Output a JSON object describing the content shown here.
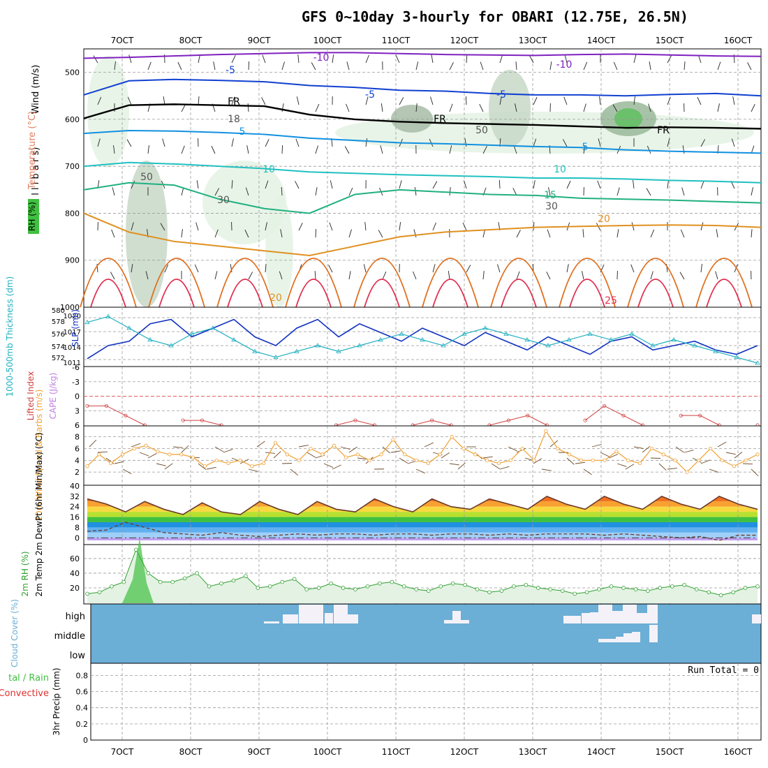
{
  "title": "GFS 0~10day 3-hourly for OBARI (12.75E, 26.5N)",
  "colors": {
    "wind": "#000000",
    "temp_label": "#e05050",
    "rh_label": "#40b040",
    "slp": "#1030c0",
    "thickness": "#20b0c0",
    "lifted_index": "#d04040",
    "cape_label": "#c080e0",
    "wind10_speed": "#f0a030",
    "wind10_label": "#f0a030",
    "rh2m": "#30a030",
    "cloud": "#6baed6",
    "precip_total": "#40c040",
    "precip_conv": "#e03030"
  },
  "chart_data": [
    {
      "type": "line",
      "panel": "upper-air",
      "x_tick_labels": [
        "7OCT",
        "8OCT",
        "9OCT",
        "10OCT",
        "11OCT",
        "12OCT",
        "13OCT",
        "14OCT",
        "15OCT",
        "16OCT"
      ],
      "y_tick_labels": [
        "500",
        "600",
        "700",
        "800",
        "900",
        "1000"
      ],
      "ylim": [
        1000,
        450
      ],
      "ylabel_parts": [
        "Wind (m/s)",
        "Temperature (°C)",
        "RH (%)"
      ],
      "ylabel_units": "(m i l l i b a r s)",
      "contour_labels": [
        "-10",
        "-10",
        "-5",
        "-5",
        "FR",
        "FR",
        "FR",
        "-5",
        "5",
        "5",
        "10",
        "10",
        "15",
        "20",
        "20",
        "25",
        "30",
        "30",
        "50",
        "50",
        "18"
      ],
      "series": [
        {
          "name": "-10",
          "y": [
            470,
            468,
            465,
            462,
            460,
            458,
            458,
            460,
            462,
            463,
            464,
            462,
            461,
            463,
            465,
            466
          ]
        },
        {
          "name": "-5",
          "y": [
            548,
            518,
            515,
            517,
            520,
            528,
            532,
            538,
            540,
            545,
            548,
            548,
            550,
            547,
            545,
            550
          ]
        },
        {
          "name": "FR",
          "y": [
            598,
            570,
            568,
            570,
            572,
            590,
            600,
            605,
            608,
            610,
            612,
            615,
            618,
            617,
            618,
            620
          ]
        },
        {
          "name": "5",
          "y": [
            630,
            624,
            625,
            628,
            632,
            640,
            645,
            650,
            652,
            655,
            658,
            660,
            665,
            668,
            670,
            672
          ]
        },
        {
          "name": "10",
          "y": [
            700,
            692,
            695,
            700,
            705,
            712,
            715,
            718,
            720,
            722,
            725,
            725,
            727,
            730,
            732,
            735
          ]
        },
        {
          "name": "15",
          "y": [
            750,
            735,
            740,
            770,
            790,
            800,
            760,
            750,
            755,
            760,
            762,
            768,
            770,
            772,
            775,
            778
          ]
        },
        {
          "name": "20",
          "y": [
            800,
            840,
            860,
            870,
            880,
            890,
            870,
            850,
            840,
            835,
            830,
            828,
            826,
            825,
            826,
            830
          ]
        }
      ]
    },
    {
      "type": "line",
      "panel": "slp-thickness",
      "ylabel_left": "1000-500mb Thickness (dm)",
      "ylabel_right": "SLP (mb)",
      "left_ticks": [
        "580",
        "578",
        "576",
        "574",
        "572"
      ],
      "right_ticks": [
        "1020",
        "1017",
        "1014",
        "1011"
      ],
      "series": [
        {
          "name": "SLP",
          "values": [
            1011,
            1014,
            1015,
            1019,
            1020,
            1016,
            1018,
            1020,
            1016,
            1014,
            1018,
            1020,
            1016,
            1019,
            1017,
            1015,
            1018,
            1016,
            1014,
            1017,
            1015,
            1013,
            1016,
            1014,
            1012,
            1015,
            1016,
            1013,
            1014,
            1015,
            1013,
            1012,
            1014
          ]
        },
        {
          "name": "Thickness",
          "values": [
            578,
            579,
            577,
            575,
            574,
            576,
            577,
            575,
            573,
            572,
            573,
            574,
            573,
            574,
            575,
            576,
            575,
            574,
            576,
            577,
            576,
            575,
            574,
            575,
            576,
            575,
            576,
            574,
            575,
            574,
            573,
            572,
            571
          ]
        }
      ]
    },
    {
      "type": "line",
      "panel": "lifted-index-cape",
      "ylabel_left": "Lifted Index",
      "ylabel_right": "CAPE (J/kg)",
      "ticks": [
        "-6",
        "-3",
        "0",
        "3",
        "6"
      ],
      "series": [
        {
          "name": "Lifted Index",
          "values": [
            2,
            2,
            4,
            6,
            null,
            5,
            5,
            6,
            null,
            null,
            null,
            null,
            null,
            6,
            5,
            6,
            null,
            6,
            5,
            6,
            null,
            6,
            5,
            4,
            6,
            null,
            5,
            2,
            4,
            6,
            null,
            4,
            4,
            6,
            null,
            6
          ]
        }
      ]
    },
    {
      "type": "line",
      "panel": "10m-wind",
      "ylabel": "10m Wind Speed & Barbs (m/s)",
      "ticks": [
        "8",
        "6",
        "4",
        "2"
      ],
      "series": [
        {
          "name": "Speed",
          "values": [
            3,
            5,
            3.5,
            5,
            6,
            6.5,
            5.5,
            5,
            5,
            4.5,
            3,
            4,
            3.5,
            4,
            3,
            3.5,
            7,
            5,
            4,
            6,
            5,
            6.5,
            4.5,
            5,
            4,
            5,
            7.5,
            5,
            4,
            3.5,
            5,
            8,
            6,
            5,
            4,
            3.5,
            4,
            6,
            4,
            9,
            6,
            5,
            4,
            4,
            4,
            5.5,
            4,
            3.5,
            6,
            5,
            4,
            2,
            4,
            6,
            4,
            3,
            4,
            5
          ]
        }
      ]
    },
    {
      "type": "area",
      "panel": "2m-temp",
      "ylabel": "2m Temp 2m DewPt (6hr Min/Max) (°C)",
      "ticks": [
        "40",
        "32",
        "24",
        "16",
        "8",
        "0"
      ],
      "series": [
        {
          "name": "2m Temp",
          "values": [
            30,
            26,
            20,
            28,
            22,
            18,
            27,
            20,
            18,
            28,
            22,
            18,
            28,
            22,
            20,
            30,
            24,
            20,
            30,
            24,
            22,
            30,
            26,
            22,
            32,
            26,
            22,
            32,
            26,
            22,
            32,
            26,
            22,
            32,
            26,
            22
          ]
        },
        {
          "name": "2m DewPt",
          "values": [
            5,
            6,
            12,
            8,
            4,
            3,
            2,
            4,
            2,
            1,
            2,
            3,
            2,
            3,
            3,
            2,
            3,
            3,
            2,
            3,
            3,
            2,
            3,
            2,
            3,
            3,
            3,
            2,
            3,
            2,
            1,
            0,
            1,
            -2,
            2,
            2
          ]
        }
      ]
    },
    {
      "type": "area",
      "panel": "2m-rh",
      "ylabel": "2m RH (%)",
      "ticks": [
        "60",
        "40",
        "20"
      ],
      "series": [
        {
          "name": "2m RH",
          "values": [
            12,
            14,
            22,
            28,
            72,
            40,
            28,
            28,
            33,
            40,
            22,
            26,
            30,
            36,
            20,
            22,
            28,
            32,
            18,
            20,
            26,
            20,
            18,
            22,
            26,
            28,
            22,
            18,
            16,
            22,
            26,
            24,
            18,
            14,
            16,
            22,
            24,
            20,
            18,
            16,
            12,
            14,
            18,
            22,
            20,
            18,
            16,
            20,
            22,
            24,
            18,
            14,
            10,
            14,
            20,
            22
          ]
        }
      ]
    },
    {
      "type": "heatmap",
      "panel": "cloud-cover",
      "ylabel": "Cloud Cover (%)",
      "row_labels": [
        "high",
        "middle",
        "low"
      ]
    },
    {
      "type": "bar",
      "panel": "precip",
      "ylabel": "3hr Precip (mm)",
      "ylabel_left_1": "tal / Rain",
      "ylabel_left_2": "Convective",
      "ticks": [
        "0.8",
        "0.6",
        "0.4",
        "0.2",
        "0"
      ],
      "annotation": "Run Total = 0",
      "values": []
    }
  ]
}
